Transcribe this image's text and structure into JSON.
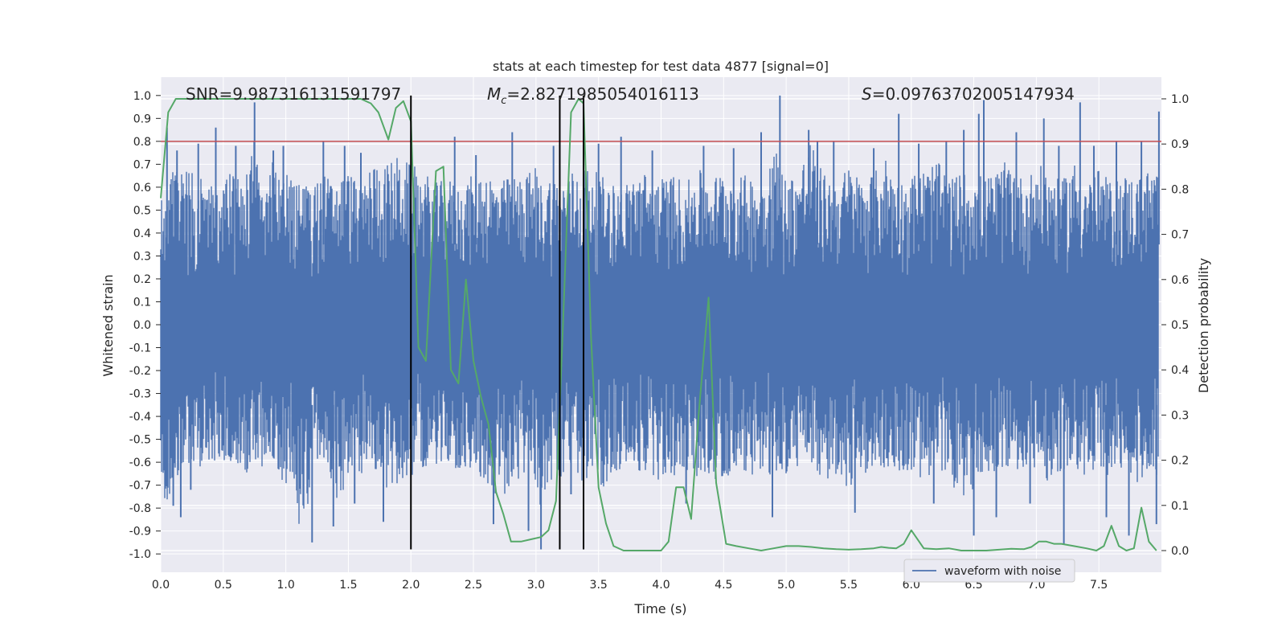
{
  "chart_data": {
    "type": "line",
    "title": "stats at each timestep for test data 4877 [signal=0]",
    "xlabel": "Time (s)",
    "ylabel": "Whitened strain",
    "y2label": "Detection probability",
    "xlim": [
      0,
      8.0
    ],
    "ylim": [
      -1.08,
      1.08
    ],
    "y2lim": [
      -0.048,
      1.048
    ],
    "xticks": [
      "0.0",
      "0.5",
      "1.0",
      "1.5",
      "2.0",
      "2.5",
      "3.0",
      "3.5",
      "4.0",
      "4.5",
      "5.0",
      "5.5",
      "6.0",
      "6.5",
      "7.0",
      "7.5"
    ],
    "yticks": [
      "1.0",
      "0.9",
      "0.8",
      "0.7",
      "0.6",
      "0.5",
      "0.4",
      "0.3",
      "0.2",
      "0.1",
      "0.0",
      "-0.1",
      "-0.2",
      "-0.3",
      "-0.4",
      "-0.5",
      "-0.6",
      "-0.7",
      "-0.8",
      "-0.9",
      "-1.0"
    ],
    "y2ticks": [
      "1.0",
      "0.9",
      "0.8",
      "0.7",
      "0.6",
      "0.5",
      "0.4",
      "0.3",
      "0.2",
      "0.1",
      "0.0"
    ],
    "grid": true,
    "legend": {
      "position": "lower-right",
      "entries": [
        "waveform with noise"
      ]
    },
    "annotations": {
      "snr_text": "SNR=9.987316131591797",
      "mc_symbol": "M",
      "mc_sub": "c",
      "mc_value": "=2.8271985054016113",
      "s_symbol": "S",
      "s_value": "=0.09763702005147934"
    },
    "series": [
      {
        "name": "waveform with noise",
        "color": "#4c72b0",
        "envelope": {
          "x": [
            0.0,
            0.04,
            0.1,
            0.2,
            0.3,
            0.4,
            0.5,
            0.6,
            0.7,
            0.75,
            0.8,
            0.9,
            1.0,
            1.1,
            1.2,
            1.3,
            1.4,
            1.5,
            1.6,
            1.7,
            1.8,
            1.9,
            2.0,
            2.1,
            2.2,
            2.3,
            2.4,
            2.5,
            2.6,
            2.7,
            2.8,
            2.9,
            3.0,
            3.05,
            3.1,
            3.2,
            3.3,
            3.4,
            3.5,
            3.6,
            3.7,
            3.8,
            3.9,
            4.0,
            4.1,
            4.2,
            4.3,
            4.4,
            4.5,
            4.6,
            4.7,
            4.8,
            4.9,
            5.0,
            5.1,
            5.2,
            5.3,
            5.4,
            5.5,
            5.6,
            5.7,
            5.8,
            5.9,
            6.0,
            6.1,
            6.2,
            6.3,
            6.4,
            6.5,
            6.6,
            6.7,
            6.8,
            6.9,
            7.0,
            7.1,
            7.2,
            7.3,
            7.4,
            7.5,
            7.6,
            7.7,
            7.8,
            7.9,
            7.98
          ],
          "max": [
            0.62,
            0.6,
            0.7,
            0.68,
            0.66,
            0.62,
            0.64,
            0.7,
            0.66,
            0.85,
            0.62,
            0.72,
            0.68,
            0.63,
            0.6,
            0.66,
            0.62,
            0.68,
            0.6,
            0.72,
            0.7,
            0.74,
            0.7,
            0.67,
            0.62,
            0.64,
            0.6,
            0.66,
            0.68,
            0.62,
            0.65,
            0.64,
            0.7,
            0.6,
            0.66,
            0.62,
            0.68,
            0.7,
            0.66,
            0.62,
            0.6,
            0.68,
            0.66,
            0.64,
            0.66,
            0.62,
            0.68,
            0.64,
            0.68,
            0.64,
            0.66,
            0.62,
            0.8,
            0.64,
            0.68,
            0.82,
            0.66,
            0.62,
            0.7,
            0.64,
            0.66,
            0.74,
            0.62,
            0.66,
            0.68,
            0.72,
            0.64,
            0.66,
            0.68,
            0.64,
            0.68,
            0.74,
            0.62,
            0.7,
            0.68,
            0.62,
            0.72,
            0.64,
            0.68,
            0.62,
            0.66,
            0.64,
            0.68,
            0.7
          ],
          "min": [
            -0.62,
            -0.82,
            -0.72,
            -0.6,
            -0.64,
            -0.58,
            -0.62,
            -0.6,
            -0.66,
            -0.6,
            -0.62,
            -0.64,
            -0.7,
            -0.88,
            -0.76,
            -0.66,
            -0.78,
            -0.68,
            -0.66,
            -0.62,
            -0.74,
            -0.7,
            -0.66,
            -0.62,
            -0.64,
            -0.6,
            -0.66,
            -0.64,
            -0.68,
            -0.8,
            -0.72,
            -0.66,
            -0.7,
            -0.84,
            -0.68,
            -0.72,
            -0.66,
            -0.7,
            -0.74,
            -0.66,
            -0.62,
            -0.66,
            -0.64,
            -0.7,
            -0.66,
            -0.64,
            -0.68,
            -0.66,
            -0.7,
            -0.62,
            -0.66,
            -0.64,
            -0.72,
            -0.66,
            -0.62,
            -0.64,
            -0.7,
            -0.66,
            -0.72,
            -0.66,
            -0.62,
            -0.64,
            -0.66,
            -0.64,
            -0.7,
            -0.66,
            -0.68,
            -0.76,
            -0.72,
            -0.66,
            -0.64,
            -0.62,
            -0.66,
            -0.62,
            -0.7,
            -0.66,
            -0.64,
            -0.66,
            -0.66,
            -0.68,
            -0.64,
            -0.7,
            -0.66,
            -0.66
          ]
        },
        "spikes": [
          {
            "x": 0.05,
            "y": 0.86
          },
          {
            "x": 0.1,
            "y": -0.79
          },
          {
            "x": 0.13,
            "y": 0.76
          },
          {
            "x": 0.16,
            "y": -0.84
          },
          {
            "x": 0.24,
            "y": -0.72
          },
          {
            "x": 0.3,
            "y": 0.79
          },
          {
            "x": 0.44,
            "y": 0.86
          },
          {
            "x": 0.6,
            "y": 0.78
          },
          {
            "x": 0.75,
            "y": 0.97
          },
          {
            "x": 0.9,
            "y": 0.76
          },
          {
            "x": 0.98,
            "y": 0.78
          },
          {
            "x": 1.21,
            "y": -0.95
          },
          {
            "x": 1.3,
            "y": 0.8
          },
          {
            "x": 1.38,
            "y": -0.88
          },
          {
            "x": 1.47,
            "y": 0.78
          },
          {
            "x": 1.55,
            "y": -0.78
          },
          {
            "x": 1.6,
            "y": 0.75
          },
          {
            "x": 1.78,
            "y": -0.86
          },
          {
            "x": 2.35,
            "y": 0.82
          },
          {
            "x": 2.52,
            "y": 0.74
          },
          {
            "x": 2.66,
            "y": -0.87
          },
          {
            "x": 2.81,
            "y": 0.84
          },
          {
            "x": 2.94,
            "y": -0.9
          },
          {
            "x": 3.04,
            "y": -0.98
          },
          {
            "x": 3.14,
            "y": 0.78
          },
          {
            "x": 3.28,
            "y": -0.74
          },
          {
            "x": 3.5,
            "y": 0.79
          },
          {
            "x": 3.68,
            "y": 0.82
          },
          {
            "x": 3.93,
            "y": 0.76
          },
          {
            "x": 4.2,
            "y": -0.78
          },
          {
            "x": 4.34,
            "y": 0.78
          },
          {
            "x": 4.58,
            "y": 0.77
          },
          {
            "x": 4.8,
            "y": 0.84
          },
          {
            "x": 4.89,
            "y": -0.84
          },
          {
            "x": 4.95,
            "y": 1.0
          },
          {
            "x": 5.18,
            "y": 0.85
          },
          {
            "x": 5.25,
            "y": 0.8
          },
          {
            "x": 5.38,
            "y": 0.8
          },
          {
            "x": 5.55,
            "y": -0.82
          },
          {
            "x": 5.7,
            "y": 0.77
          },
          {
            "x": 5.9,
            "y": 0.92
          },
          {
            "x": 6.06,
            "y": 0.79
          },
          {
            "x": 6.18,
            "y": -0.78
          },
          {
            "x": 6.28,
            "y": 0.8
          },
          {
            "x": 6.42,
            "y": 0.85
          },
          {
            "x": 6.5,
            "y": -0.92
          },
          {
            "x": 6.54,
            "y": 0.92
          },
          {
            "x": 6.58,
            "y": 0.98
          },
          {
            "x": 6.68,
            "y": -0.84
          },
          {
            "x": 6.84,
            "y": 0.84
          },
          {
            "x": 6.95,
            "y": -0.78
          },
          {
            "x": 7.06,
            "y": 0.9
          },
          {
            "x": 7.18,
            "y": 0.78
          },
          {
            "x": 7.22,
            "y": -0.96
          },
          {
            "x": 7.35,
            "y": 0.97
          },
          {
            "x": 7.46,
            "y": 0.78
          },
          {
            "x": 7.56,
            "y": -0.84
          },
          {
            "x": 7.64,
            "y": 0.8
          },
          {
            "x": 7.74,
            "y": -0.92
          },
          {
            "x": 7.84,
            "y": 0.8
          },
          {
            "x": 7.96,
            "y": -0.87
          },
          {
            "x": 7.98,
            "y": 0.93
          }
        ]
      },
      {
        "name": "",
        "color": "#55a868",
        "axis": "right",
        "x": [
          0.0,
          0.06,
          0.12,
          0.2,
          0.3,
          0.4,
          0.5,
          0.6,
          0.7,
          0.8,
          0.9,
          1.0,
          1.1,
          1.2,
          1.3,
          1.4,
          1.5,
          1.6,
          1.68,
          1.74,
          1.82,
          1.88,
          1.94,
          2.0,
          2.06,
          2.12,
          2.2,
          2.26,
          2.32,
          2.38,
          2.44,
          2.5,
          2.56,
          2.62,
          2.68,
          2.74,
          2.8,
          2.88,
          2.96,
          3.04,
          3.1,
          3.16,
          3.22,
          3.28,
          3.34,
          3.38,
          3.44,
          3.5,
          3.56,
          3.62,
          3.7,
          3.8,
          3.9,
          4.0,
          4.06,
          4.12,
          4.18,
          4.24,
          4.3,
          4.38,
          4.44,
          4.52,
          4.6,
          4.7,
          4.8,
          4.9,
          5.0,
          5.1,
          5.2,
          5.3,
          5.4,
          5.5,
          5.6,
          5.7,
          5.76,
          5.82,
          5.88,
          5.94,
          6.0,
          6.1,
          6.2,
          6.3,
          6.4,
          6.5,
          6.6,
          6.7,
          6.8,
          6.9,
          6.96,
          7.02,
          7.08,
          7.14,
          7.2,
          7.3,
          7.4,
          7.48,
          7.54,
          7.6,
          7.66,
          7.72,
          7.78,
          7.84,
          7.9,
          7.96
        ],
        "y": [
          0.78,
          0.97,
          1.0,
          1.0,
          1.0,
          1.0,
          1.0,
          1.0,
          1.0,
          1.0,
          1.0,
          1.0,
          1.0,
          1.0,
          1.0,
          1.0,
          1.0,
          1.0,
          0.99,
          0.97,
          0.91,
          0.98,
          0.995,
          0.95,
          0.45,
          0.42,
          0.84,
          0.85,
          0.4,
          0.37,
          0.6,
          0.42,
          0.34,
          0.28,
          0.13,
          0.08,
          0.02,
          0.02,
          0.025,
          0.03,
          0.045,
          0.11,
          0.53,
          0.97,
          1.0,
          0.99,
          0.47,
          0.14,
          0.06,
          0.01,
          0.0,
          0.0,
          0.0,
          0.0,
          0.02,
          0.14,
          0.14,
          0.07,
          0.3,
          0.56,
          0.15,
          0.015,
          0.01,
          0.005,
          0.0,
          0.005,
          0.01,
          0.01,
          0.008,
          0.005,
          0.003,
          0.002,
          0.003,
          0.005,
          0.008,
          0.006,
          0.005,
          0.015,
          0.045,
          0.005,
          0.003,
          0.005,
          0.0,
          0.0,
          0.0,
          0.002,
          0.004,
          0.003,
          0.008,
          0.02,
          0.02,
          0.015,
          0.015,
          0.01,
          0.005,
          0.0,
          0.01,
          0.055,
          0.01,
          0.0,
          0.005,
          0.095,
          0.02,
          0.0
        ]
      }
    ],
    "threshold": {
      "y": 0.8,
      "color": "#c44e52"
    },
    "vlines": [
      {
        "x": 2.0,
        "ymin": -0.98,
        "ymax": 1.0
      },
      {
        "x": 3.19,
        "ymin": -0.98,
        "ymax": 1.0
      },
      {
        "x": 3.38,
        "ymin": -0.98,
        "ymax": 1.0
      }
    ]
  }
}
